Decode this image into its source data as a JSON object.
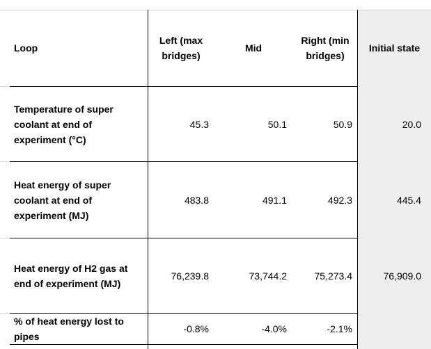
{
  "table": {
    "headers": [
      "Loop",
      "Left (max bridges)",
      "Mid",
      "Right (min bridges)",
      "Initial state"
    ],
    "rows": [
      {
        "label": "Temperature of super coolant at end of experiment (°C)",
        "values": [
          "45.3",
          "50.1",
          "50.9",
          "20.0"
        ]
      },
      {
        "label": "Heat energy of super coolant at end of experiment (MJ)",
        "values": [
          "483.8",
          "491.1",
          "492.3",
          "445.4"
        ]
      },
      {
        "label": "Heat energy of H2 gas at end of experiment (MJ)",
        "values": [
          "76,239.8",
          "73,744.2",
          "75,273.4",
          "76,909.0"
        ]
      },
      {
        "label": "% of heat energy lost to pipes",
        "values": [
          "-0.8%",
          "-4.0%",
          "-2.1%",
          ""
        ]
      }
    ]
  },
  "colors": {
    "shaded_column": "#eeeeee",
    "border": "#000000",
    "gridline": "#d9d9d9"
  }
}
